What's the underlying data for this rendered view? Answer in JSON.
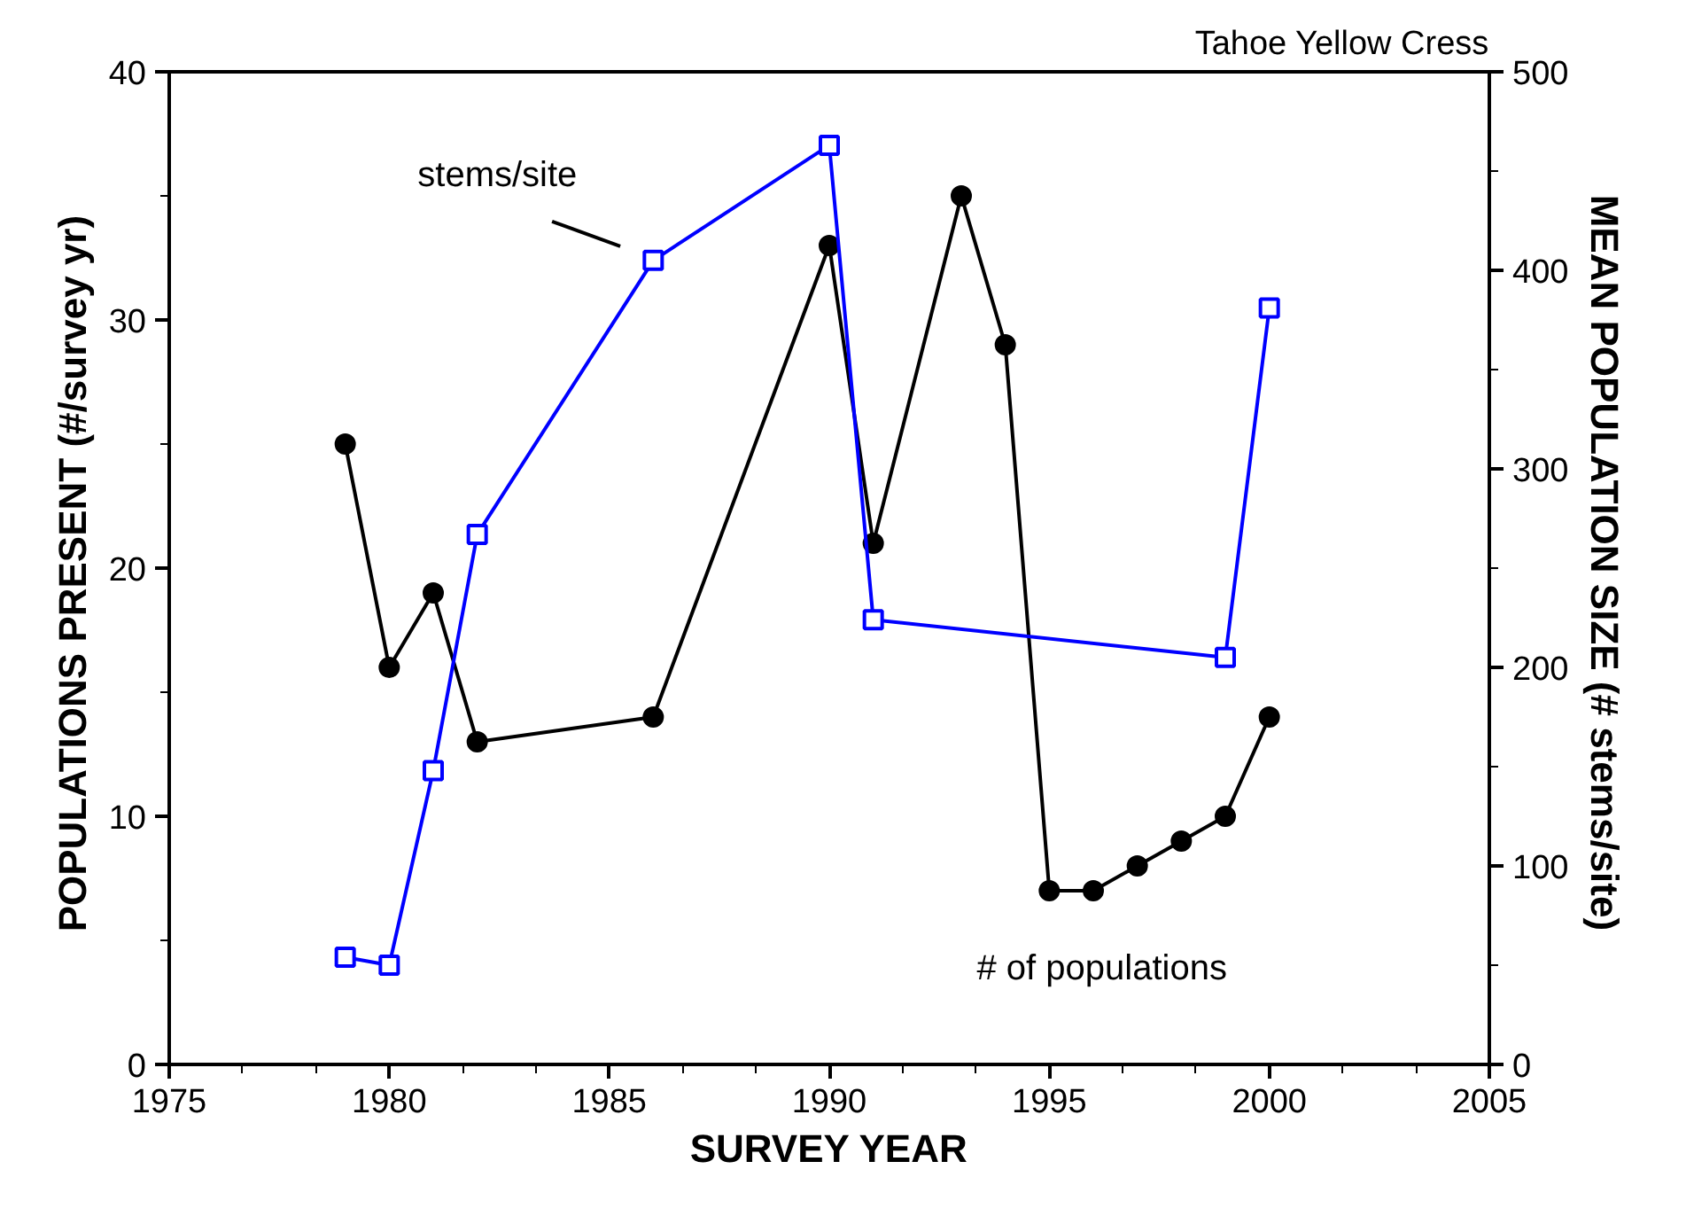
{
  "chart_data": {
    "type": "line",
    "title": "Tahoe Yellow Cress",
    "xlabel": "SURVEY YEAR",
    "ylabel": "POPULATIONS PRESENT  (#/survey yr)",
    "y2label": "MEAN POPULATION SIZE  (# stems/site)",
    "xlim": [
      1975,
      2005
    ],
    "xticks": [
      1975,
      1980,
      1985,
      1990,
      1995,
      2000,
      2005
    ],
    "ylim": [
      0,
      40
    ],
    "yticks": [
      0,
      10,
      20,
      30,
      40
    ],
    "y2lim": [
      0,
      500
    ],
    "y2ticks": [
      0,
      100,
      200,
      300,
      400,
      500
    ],
    "grid": false,
    "line_style": "solid",
    "series": [
      {
        "name": "# of populations",
        "color": "#000000",
        "marker": "circle",
        "x": [
          1979,
          1980,
          1981,
          1982,
          1986,
          1990,
          1991,
          1993,
          1994,
          1995,
          1996,
          1997,
          1998,
          1999,
          2000
        ],
        "values": [
          25,
          16,
          19,
          13,
          14,
          33,
          21,
          35,
          29,
          7,
          7,
          8,
          9,
          10,
          14
        ]
      },
      {
        "name": "stems/site",
        "color": "#0000ff",
        "marker": "square",
        "axis": "y2",
        "x": [
          1979,
          1980,
          1981,
          1982,
          1986,
          1990,
          1991,
          1999,
          2000
        ],
        "values": [
          54,
          50,
          148,
          267,
          405,
          463,
          224,
          205,
          381
        ]
      }
    ]
  }
}
